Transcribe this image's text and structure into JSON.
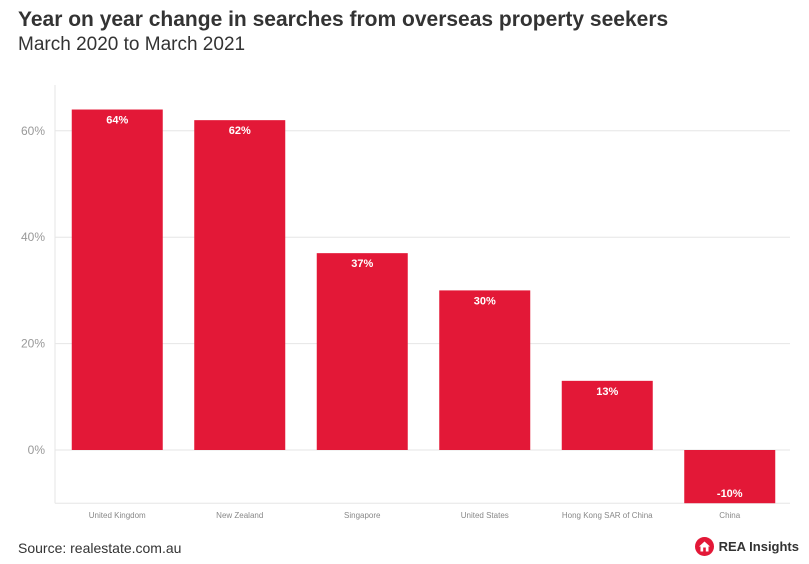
{
  "header": {
    "title": "Year on year change in searches from overseas property seekers",
    "subtitle": "March 2020 to March 2021"
  },
  "footer": {
    "source": "Source: realestate.com.au",
    "brand": "REA Insights",
    "brand_icon": "house-icon"
  },
  "colors": {
    "bar": "#e31837",
    "grid": "#e6e6e6"
  },
  "chart_data": {
    "type": "bar",
    "categories": [
      "United Kingdom",
      "New Zealand",
      "Singapore",
      "United States",
      "Hong Kong SAR of China",
      "China"
    ],
    "values": [
      64,
      62,
      37,
      30,
      13,
      -10
    ],
    "data_labels": [
      "64%",
      "62%",
      "37%",
      "30%",
      "13%",
      "-10%"
    ],
    "y_ticks": [
      0,
      20,
      40,
      60
    ],
    "y_tick_labels": [
      "0%",
      "20%",
      "40%",
      "60%"
    ],
    "ylim": [
      -10,
      70
    ],
    "grid": true,
    "legend": "none"
  }
}
